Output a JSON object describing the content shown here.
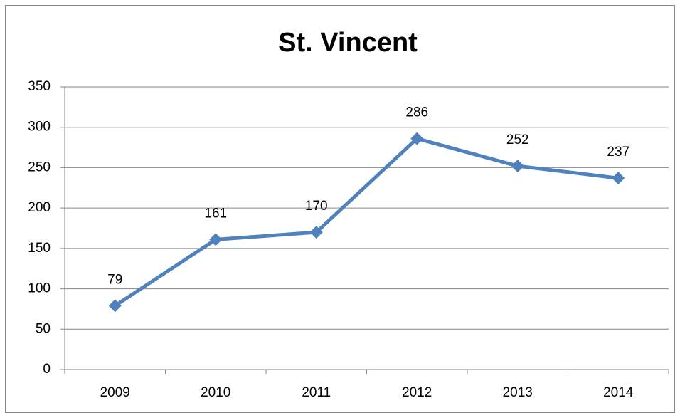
{
  "chart_data": {
    "type": "line",
    "title": "St. Vincent",
    "categories": [
      "2009",
      "2010",
      "2011",
      "2012",
      "2013",
      "2014"
    ],
    "values": [
      79,
      161,
      170,
      286,
      252,
      237
    ],
    "color": "#4f81bd",
    "ylim": [
      0,
      350
    ],
    "yticks": [
      0,
      50,
      100,
      150,
      200,
      250,
      300,
      350
    ],
    "grid": true,
    "data_labels": true
  }
}
